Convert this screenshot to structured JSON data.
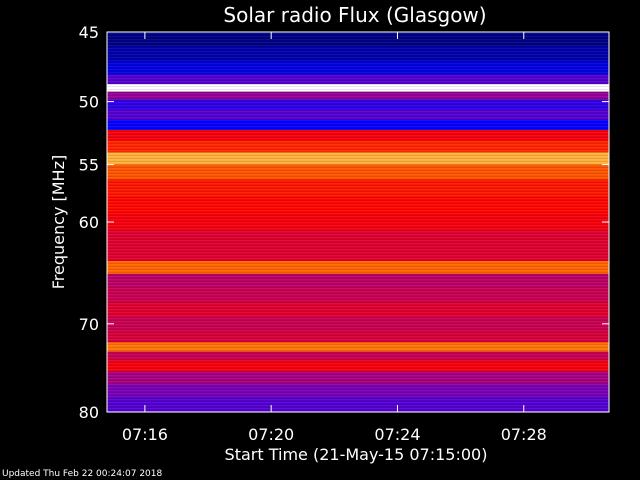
{
  "chart_data": {
    "type": "heatmap",
    "title": "Solar radio Flux (Glasgow)",
    "xlabel": "Start Time (21-May-15 07:15:00)",
    "ylabel": "Frequency [MHz]",
    "y_axis": {
      "scale": "log",
      "range_mhz": [
        45,
        80
      ],
      "ticks": [
        {
          "value": 45,
          "label": "45"
        },
        {
          "value": 50,
          "label": "50"
        },
        {
          "value": 55,
          "label": "55"
        },
        {
          "value": 60,
          "label": "60"
        },
        {
          "value": 70,
          "label": "70"
        },
        {
          "value": 80,
          "label": "80"
        }
      ],
      "direction": "increasing downward"
    },
    "x_axis": {
      "range_minutes_after_0715": [
        -0.2,
        15.7
      ],
      "ticks": [
        {
          "value": 1,
          "label": "07:16"
        },
        {
          "value": 5,
          "label": "07:20"
        },
        {
          "value": 9,
          "label": "07:24"
        },
        {
          "value": 13,
          "label": "07:28"
        }
      ]
    },
    "colormap": [
      "#000040",
      "#0000ff",
      "#7000c0",
      "#c00060",
      "#ff0000",
      "#ff7000",
      "#ffff80",
      "#ffffff"
    ],
    "frequency_bands": [
      {
        "mhz": 45.5,
        "intensity": 0.05
      },
      {
        "mhz": 46.5,
        "intensity": 0.08
      },
      {
        "mhz": 47.6,
        "intensity": 0.12
      },
      {
        "mhz": 48.4,
        "intensity": 0.25
      },
      {
        "mhz": 49.0,
        "intensity": 1.0
      },
      {
        "mhz": 49.5,
        "intensity": 0.35
      },
      {
        "mhz": 50.2,
        "intensity": 0.2
      },
      {
        "mhz": 51.0,
        "intensity": 0.25
      },
      {
        "mhz": 51.8,
        "intensity": 0.15
      },
      {
        "mhz": 52.6,
        "intensity": 0.55
      },
      {
        "mhz": 53.5,
        "intensity": 0.62
      },
      {
        "mhz": 54.5,
        "intensity": 0.78
      },
      {
        "mhz": 55.5,
        "intensity": 0.68
      },
      {
        "mhz": 57.0,
        "intensity": 0.6
      },
      {
        "mhz": 58.5,
        "intensity": 0.58
      },
      {
        "mhz": 60.0,
        "intensity": 0.55
      },
      {
        "mhz": 61.5,
        "intensity": 0.5
      },
      {
        "mhz": 63.0,
        "intensity": 0.5
      },
      {
        "mhz": 64.3,
        "intensity": 0.7
      },
      {
        "mhz": 65.5,
        "intensity": 0.42
      },
      {
        "mhz": 67.0,
        "intensity": 0.45
      },
      {
        "mhz": 68.5,
        "intensity": 0.5
      },
      {
        "mhz": 70.0,
        "intensity": 0.45
      },
      {
        "mhz": 71.5,
        "intensity": 0.48
      },
      {
        "mhz": 72.5,
        "intensity": 0.72
      },
      {
        "mhz": 73.5,
        "intensity": 0.45
      },
      {
        "mhz": 74.5,
        "intensity": 0.55
      },
      {
        "mhz": 76.0,
        "intensity": 0.38
      },
      {
        "mhz": 77.5,
        "intensity": 0.3
      },
      {
        "mhz": 79.0,
        "intensity": 0.25
      }
    ],
    "grid": false
  },
  "footer": {
    "updated": "Updated Thu Feb 22 00:24:07 2018"
  }
}
